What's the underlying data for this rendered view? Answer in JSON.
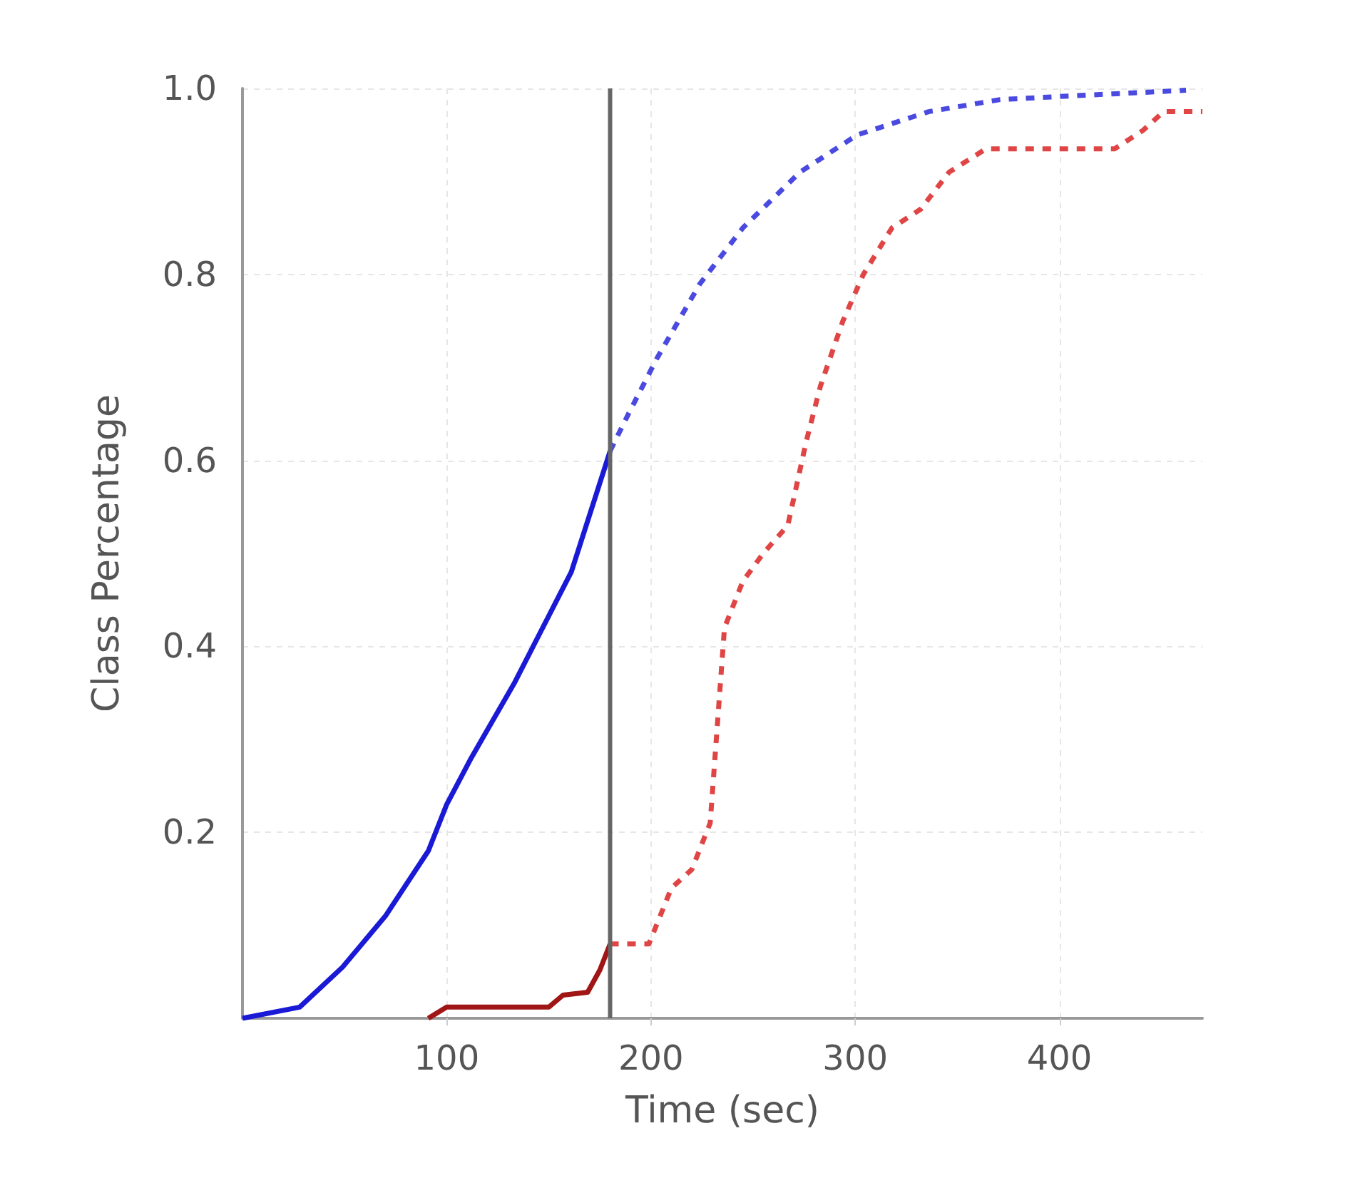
{
  "chart_data": {
    "type": "line",
    "xlabel": "Time (sec)",
    "ylabel": "Class Percentage",
    "xlim": [
      0,
      470
    ],
    "xticks": [
      100,
      200,
      300,
      400
    ],
    "ylim": [
      0,
      1
    ],
    "yticks": [
      0.2,
      0.4,
      0.6,
      0.8,
      {
        "value": 1,
        "label": "1.0"
      }
    ],
    "grid": true,
    "marker": "none",
    "ref_lines": [
      {
        "axis": "x",
        "value": 180,
        "color": "#666666",
        "line_style": "solid"
      }
    ],
    "series": [
      {
        "color": "#1a1ad6",
        "line_style": "solid",
        "x": [
          0,
          28,
          49,
          70,
          91,
          100,
          112,
          133,
          154,
          161,
          180
        ],
        "values": [
          0,
          0.012,
          0.055,
          0.11,
          0.18,
          0.23,
          0.28,
          0.36,
          0.45,
          0.48,
          0.61
        ]
      },
      {
        "color": "#4a4ae0",
        "line_style": "dashed",
        "x": [
          180,
          189,
          203,
          224,
          245,
          273,
          301,
          336,
          371,
          406,
          462
        ],
        "values": [
          0.61,
          0.65,
          0.71,
          0.79,
          0.85,
          0.91,
          0.95,
          0.975,
          0.988,
          0.992,
          0.998
        ]
      },
      {
        "color": "#a01515",
        "line_style": "solid",
        "x": [
          91,
          100,
          112,
          150,
          157,
          169,
          175,
          180
        ],
        "values": [
          0,
          0.012,
          0.012,
          0.012,
          0.025,
          0.028,
          0.052,
          0.08
        ]
      },
      {
        "color": "#e04545",
        "line_style": "dashed",
        "x": [
          180,
          189,
          199,
          210,
          220,
          229,
          236,
          245,
          255,
          267,
          276,
          283,
          294,
          304,
          318,
          332,
          346,
          364,
          392,
          427,
          441,
          451,
          470
        ],
        "values": [
          0.08,
          0.08,
          0.08,
          0.14,
          0.16,
          0.21,
          0.42,
          0.47,
          0.5,
          0.53,
          0.62,
          0.68,
          0.75,
          0.8,
          0.85,
          0.87,
          0.91,
          0.935,
          0.935,
          0.935,
          0.955,
          0.975,
          0.975
        ]
      }
    ]
  }
}
